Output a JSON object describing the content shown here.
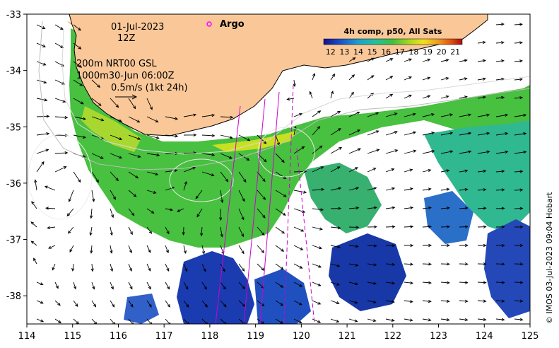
{
  "map": {
    "x_ticks": [
      "114",
      "115",
      "116",
      "117",
      "118",
      "119",
      "120",
      "121",
      "122",
      "123",
      "124",
      "125"
    ],
    "y_ticks": [
      "-33",
      "-34",
      "-35",
      "-36",
      "-37",
      "-38"
    ],
    "lon_range": [
      114,
      125
    ],
    "lat_range": [
      -38.5,
      -33
    ]
  },
  "annotations": {
    "date": "01-Jul-2023",
    "hour": "12Z",
    "argo_label": "Argo",
    "line1": "200m  NRT00 GSL",
    "line2": "1000m30-Jun 06:00Z",
    "scale_label": "0.5m/s (1kt 24h)"
  },
  "colorbar": {
    "title": "4h comp, p50, All Sats",
    "ticks": [
      "12",
      "13",
      "14",
      "15",
      "16",
      "17",
      "18",
      "19",
      "20",
      "21"
    ],
    "range": [
      11.5,
      21.5
    ]
  },
  "credit": "© IMOS 03-Jul-2023 09:04 Hobart",
  "colors": {
    "land": "#fac898",
    "cold": "#1a2fa8",
    "mid": "#3dbb3d",
    "warm": "#f2a020",
    "argo": "#ff00ff",
    "track": "#d000d0"
  }
}
